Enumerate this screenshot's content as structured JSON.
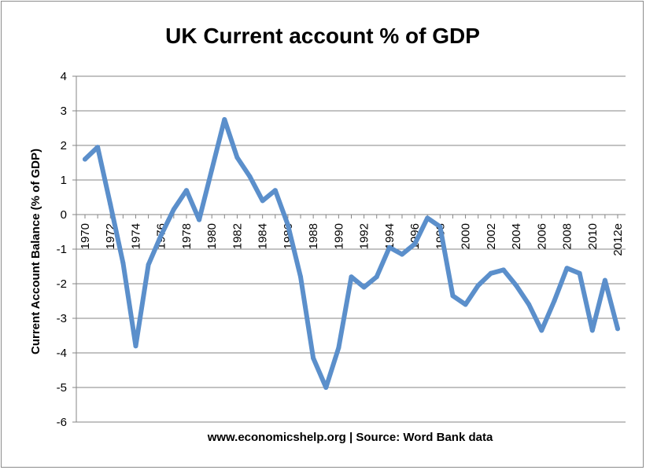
{
  "chart_data": {
    "type": "line",
    "title": "UK Current account  % of GDP",
    "ylabel": "Current Account Balance (% of GDP)",
    "xlabel": "www.economicshelp.org | Source: Word Bank data",
    "ylim": [
      -6,
      4
    ],
    "yticks": [
      "4",
      "3",
      "2",
      "1",
      "0",
      "-1",
      "-2",
      "-3",
      "-4",
      "-5",
      "-6"
    ],
    "grid": "horizontal",
    "line_color": "#5b8fcb",
    "categories": [
      "1970",
      "1971",
      "1972",
      "1973",
      "1974",
      "1975",
      "1976",
      "1977",
      "1978",
      "1979",
      "1980",
      "1981",
      "1982",
      "1983",
      "1984",
      "1985",
      "1986",
      "1987",
      "1988",
      "1989",
      "1990",
      "1991",
      "1992",
      "1993",
      "1994",
      "1995",
      "1996",
      "1997",
      "1998",
      "1999",
      "2000",
      "2001",
      "2002",
      "2003",
      "2004",
      "2005",
      "2006",
      "2007",
      "2008",
      "2009",
      "2010",
      "2011",
      "2012e"
    ],
    "tick_labels": [
      "1970",
      "",
      "1972",
      "",
      "1974",
      "",
      "1976",
      "",
      "1978",
      "",
      "1980",
      "",
      "1982",
      "",
      "1984",
      "",
      "1986",
      "",
      "1988",
      "",
      "1990",
      "",
      "1992",
      "",
      "1994",
      "",
      "1996",
      "",
      "1998",
      "",
      "2000",
      "",
      "2002",
      "",
      "2004",
      "",
      "2006",
      "",
      "2008",
      "",
      "2010",
      "",
      "2012e"
    ],
    "values": [
      1.6,
      1.95,
      0.3,
      -1.4,
      -3.8,
      -1.45,
      -0.6,
      0.15,
      0.7,
      -0.15,
      1.3,
      2.75,
      1.65,
      1.1,
      0.4,
      0.7,
      -0.3,
      -1.8,
      -4.15,
      -5.0,
      -3.85,
      -1.8,
      -2.1,
      -1.8,
      -0.95,
      -1.15,
      -0.85,
      -0.1,
      -0.35,
      -2.35,
      -2.6,
      -2.05,
      -1.7,
      -1.6,
      -2.05,
      -2.6,
      -3.35,
      -2.5,
      -1.55,
      -1.7,
      -3.35,
      -1.9,
      -3.3
    ]
  }
}
